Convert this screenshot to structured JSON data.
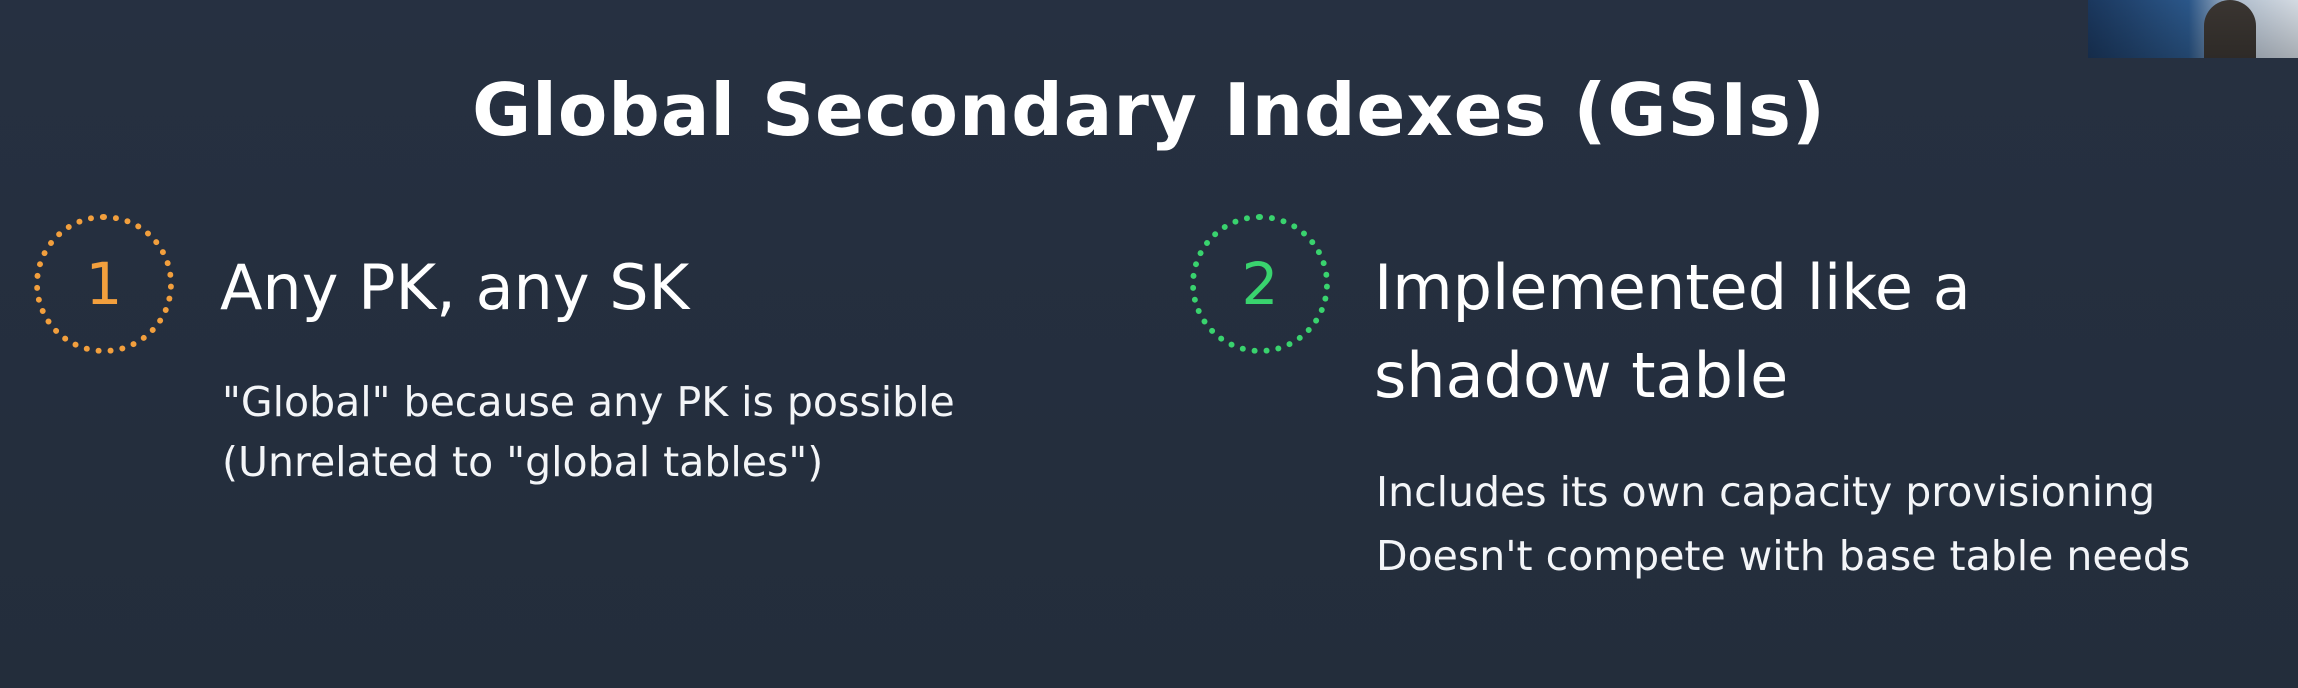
{
  "slide": {
    "title": "Global Secondary Indexes (GSIs)",
    "points": [
      {
        "number": "1",
        "title_lines": [
          "Any PK, any SK"
        ],
        "details": [
          "\"Global\" because any PK is possible",
          "(Unrelated to \"global tables\")"
        ],
        "accent_color": "#f29f3d"
      },
      {
        "number": "2",
        "title_lines": [
          "Implemented like a",
          "shadow table"
        ],
        "details": [
          "Includes its own capacity provisioning",
          "Doesn't compete with base table needs"
        ],
        "accent_color": "#39d36e"
      }
    ]
  },
  "colors": {
    "background": "#252f3e",
    "text": "#ffffff"
  }
}
